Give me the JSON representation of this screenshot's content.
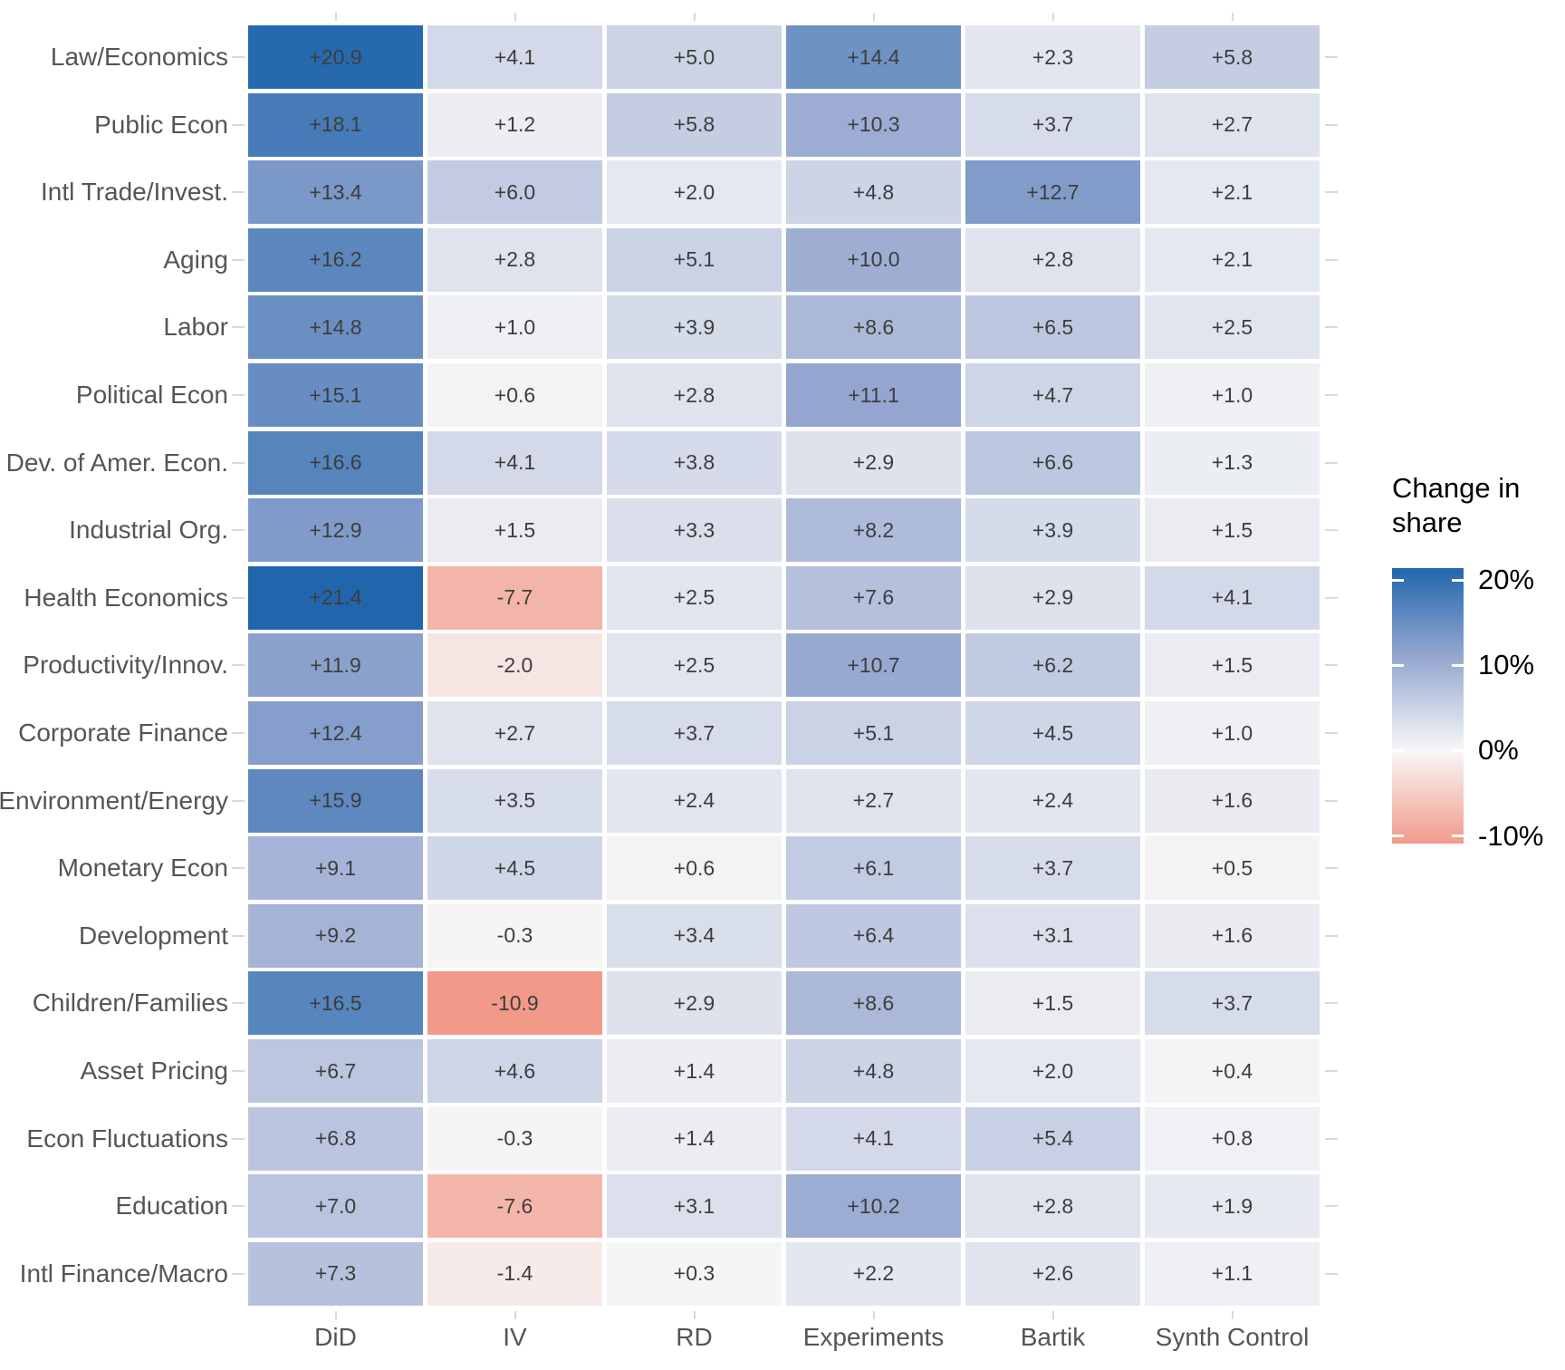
{
  "chart_data": {
    "type": "heatmap",
    "rows": [
      "Law/Economics",
      "Public Econ",
      "Intl Trade/Invest.",
      "Aging",
      "Labor",
      "Political Econ",
      "Dev. of Amer. Econ.",
      "Industrial Org.",
      "Health Economics",
      "Productivity/Innov.",
      "Corporate Finance",
      "Environment/Energy",
      "Monetary Econ",
      "Development",
      "Children/Families",
      "Asset Pricing",
      "Econ Fluctuations",
      "Education",
      "Intl Finance/Macro"
    ],
    "columns": [
      "DiD",
      "IV",
      "RD",
      "Experiments",
      "Bartik",
      "Synth Control"
    ],
    "values": [
      [
        20.9,
        4.1,
        5.0,
        14.4,
        2.3,
        5.8
      ],
      [
        18.1,
        1.2,
        5.8,
        10.3,
        3.7,
        2.7
      ],
      [
        13.4,
        6.0,
        2.0,
        4.8,
        12.7,
        2.1
      ],
      [
        16.2,
        2.8,
        5.1,
        10.0,
        2.8,
        2.1
      ],
      [
        14.8,
        1.0,
        3.9,
        8.6,
        6.5,
        2.5
      ],
      [
        15.1,
        0.6,
        2.8,
        11.1,
        4.7,
        1.0
      ],
      [
        16.6,
        4.1,
        3.8,
        2.9,
        6.6,
        1.3
      ],
      [
        12.9,
        1.5,
        3.3,
        8.2,
        3.9,
        1.5
      ],
      [
        21.4,
        -7.7,
        2.5,
        7.6,
        2.9,
        4.1
      ],
      [
        11.9,
        -2.0,
        2.5,
        10.7,
        6.2,
        1.5
      ],
      [
        12.4,
        2.7,
        3.7,
        5.1,
        4.5,
        1.0
      ],
      [
        15.9,
        3.5,
        2.4,
        2.7,
        2.4,
        1.6
      ],
      [
        9.1,
        4.5,
        0.6,
        6.1,
        3.7,
        0.5
      ],
      [
        9.2,
        -0.3,
        3.4,
        6.4,
        3.1,
        1.6
      ],
      [
        16.5,
        -10.9,
        2.9,
        8.6,
        1.5,
        3.7
      ],
      [
        6.7,
        4.6,
        1.4,
        4.8,
        2.0,
        0.4
      ],
      [
        6.8,
        -0.3,
        1.4,
        4.1,
        5.4,
        0.8
      ],
      [
        7.0,
        -7.6,
        3.1,
        10.2,
        2.8,
        1.9
      ],
      [
        7.3,
        -1.4,
        0.3,
        2.2,
        2.6,
        1.1
      ]
    ],
    "value_format": "signed one-decimal (e.g. +20.9, -0.3)",
    "legend": {
      "title": "Change in share",
      "tick_labels": [
        "20%",
        "10%",
        "0%",
        "-10%"
      ],
      "tick_values": [
        20,
        10,
        0,
        -10
      ],
      "position": "right"
    },
    "color_scale": {
      "domain_min": -10.9,
      "domain_mid": 0,
      "domain_max": 21.4,
      "low": "#f29a8a",
      "mid": "#f7f7f7",
      "mid_high_stop": "#98a9d1",
      "high": "#2166ac"
    },
    "grid": false
  }
}
